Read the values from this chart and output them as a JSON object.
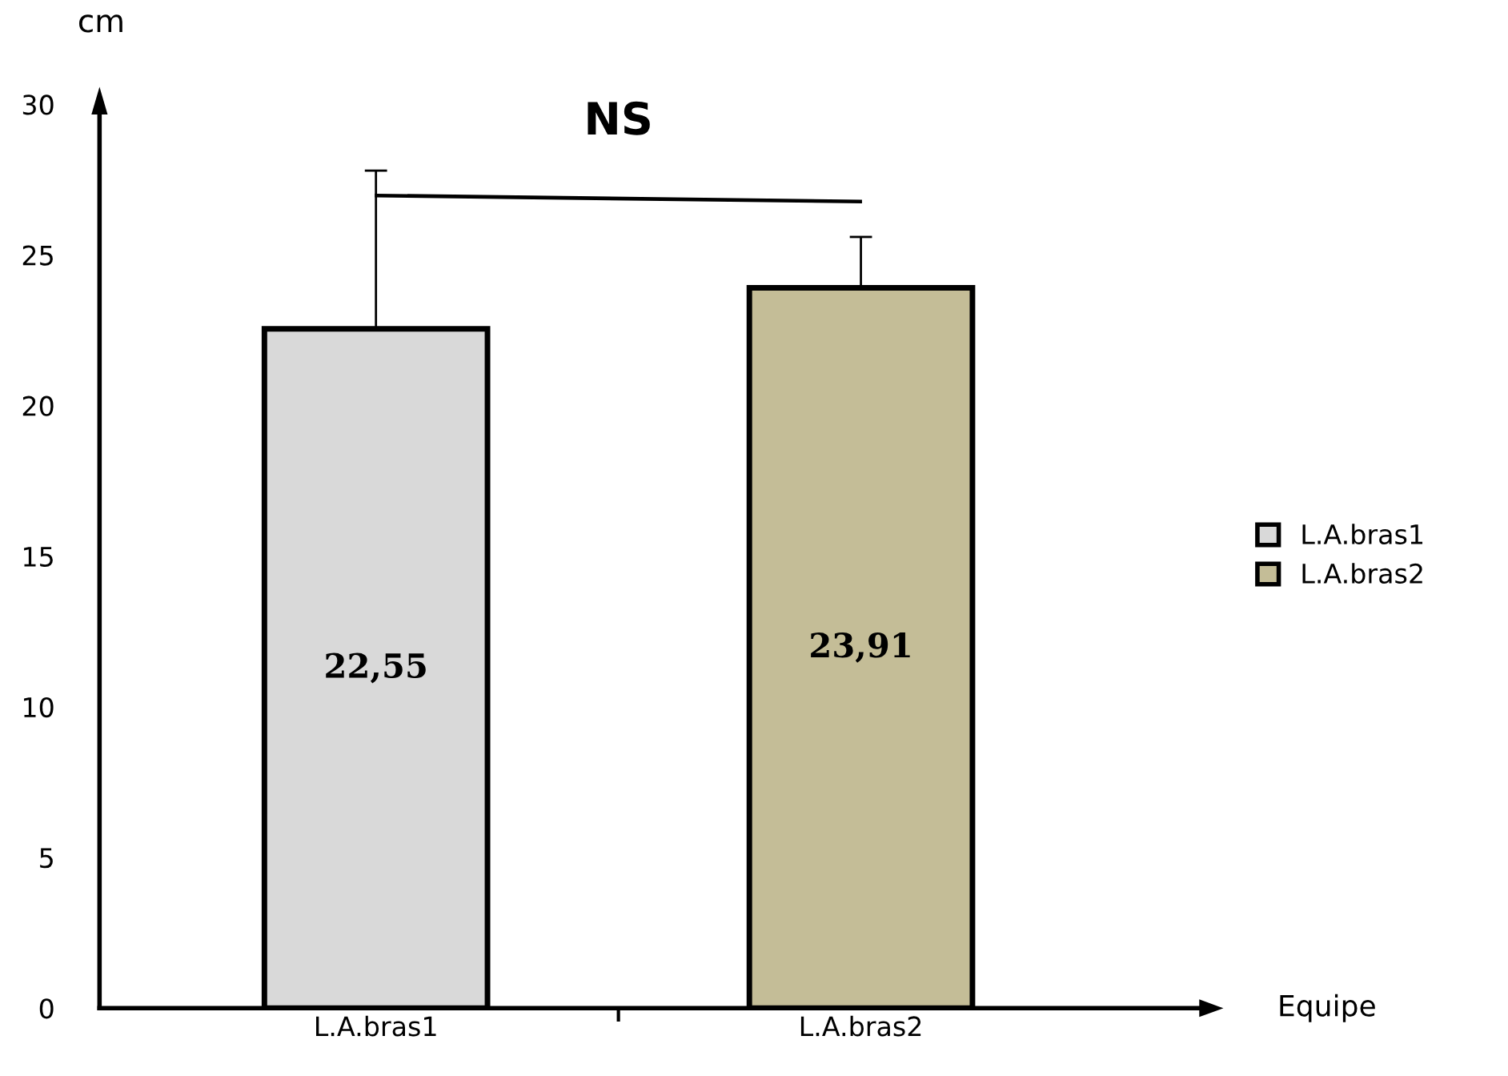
{
  "chart_data": {
    "type": "bar",
    "categories": [
      "L.A.bras1",
      "L.A.bras2"
    ],
    "series": [
      {
        "name": "L.A.bras1",
        "color": "#d9d9d9",
        "values": [
          22.55,
          null
        ],
        "errors": [
          [
            22.55,
            27.8
          ],
          null
        ],
        "value_labels": [
          "22,55",
          null
        ]
      },
      {
        "name": "L.A.bras2",
        "color": "#c4bd97",
        "values": [
          null,
          23.91
        ],
        "errors": [
          null,
          [
            23.91,
            25.6
          ]
        ],
        "value_labels": [
          null,
          "23,91"
        ]
      }
    ],
    "ylabel": "cm",
    "xlabel": "Equipe",
    "annotations": [
      "NS"
    ],
    "ylim": [
      0,
      30
    ],
    "yticks": [
      0,
      5,
      10,
      15,
      20,
      25,
      30
    ],
    "grid": false,
    "legend": "right"
  }
}
